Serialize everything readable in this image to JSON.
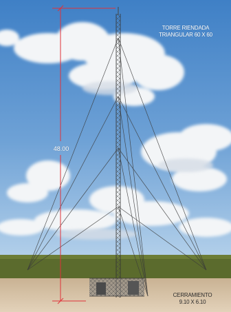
{
  "tower_title": {
    "line1": "TORRE RIENDADA",
    "line2": "TRIANGULAR  60 X 60"
  },
  "height_dimension": "48.00",
  "fence": {
    "line1": "CERRAMIENTO",
    "line2": "9.10 X 6.10"
  },
  "colors": {
    "sky_top": "#3f80c6",
    "sky_bottom": "#a9c9e6",
    "grass": "#5a6a2c",
    "ground": "#d8c2a4",
    "dimension_line": "#e0323a",
    "guy_wire": "#3a3a3a"
  }
}
